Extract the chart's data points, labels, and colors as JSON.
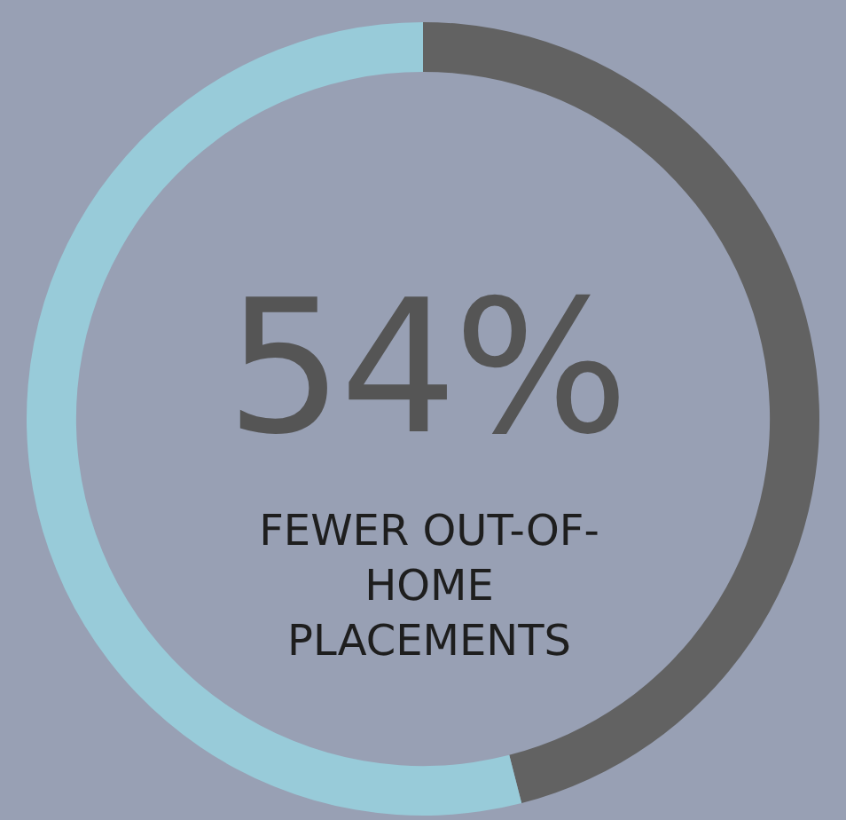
{
  "chart_data": {
    "type": "donut",
    "title": "54%",
    "subtitle": "FEWER OUT-OF-HOME PLACEMENTS",
    "categories": [
      null,
      null
    ],
    "values": [
      46,
      54
    ],
    "colors": [
      "#626262",
      "#98cbd9"
    ],
    "legend": false
  }
}
